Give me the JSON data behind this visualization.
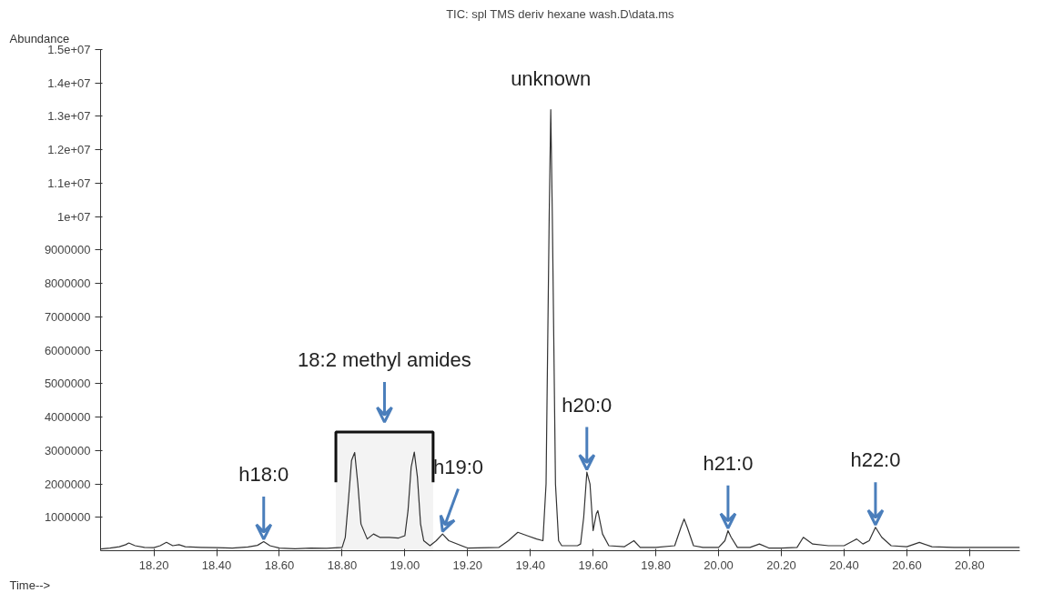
{
  "chart_data": {
    "type": "line",
    "title": "TIC: spl TMS deriv hexane wash.D\\data.ms",
    "xlabel": "Time-->",
    "ylabel": "Abundance",
    "x": [
      18.03,
      18.06,
      18.09,
      18.11,
      18.12,
      18.14,
      18.17,
      18.2,
      18.22,
      18.24,
      18.26,
      18.28,
      18.3,
      18.35,
      18.4,
      18.45,
      18.5,
      18.53,
      18.55,
      18.57,
      18.6,
      18.65,
      18.7,
      18.75,
      18.8,
      18.81,
      18.82,
      18.83,
      18.84,
      18.85,
      18.86,
      18.88,
      18.9,
      18.92,
      18.95,
      18.98,
      19.0,
      19.01,
      19.02,
      19.03,
      19.04,
      19.05,
      19.06,
      19.08,
      19.1,
      19.12,
      19.14,
      19.2,
      19.3,
      19.33,
      19.36,
      19.39,
      19.42,
      19.44,
      19.45,
      19.46,
      19.465,
      19.47,
      19.48,
      19.49,
      19.5,
      19.55,
      19.56,
      19.57,
      19.58,
      19.59,
      19.6,
      19.61,
      19.615,
      19.63,
      19.65,
      19.7,
      19.73,
      19.75,
      19.8,
      19.86,
      19.88,
      19.89,
      19.9,
      19.92,
      19.95,
      20.0,
      20.02,
      20.03,
      20.04,
      20.06,
      20.1,
      20.13,
      20.16,
      20.2,
      20.25,
      20.27,
      20.3,
      20.35,
      20.4,
      20.43,
      20.44,
      20.46,
      20.48,
      20.5,
      20.52,
      20.55,
      20.6,
      20.64,
      20.68,
      20.75,
      20.85,
      20.96
    ],
    "series": [
      {
        "color": "#333333",
        "values": [
          50000,
          80000,
          120000,
          180000,
          230000,
          150000,
          100000,
          90000,
          150000,
          250000,
          150000,
          180000,
          120000,
          100000,
          90000,
          80000,
          110000,
          160000,
          270000,
          150000,
          80000,
          60000,
          80000,
          70000,
          100000,
          400000,
          1500000,
          2700000,
          2940000,
          2000000,
          800000,
          350000,
          500000,
          400000,
          400000,
          380000,
          450000,
          1200000,
          2500000,
          2950000,
          2200000,
          800000,
          300000,
          150000,
          300000,
          500000,
          300000,
          80000,
          100000,
          300000,
          550000,
          450000,
          350000,
          300000,
          2000000,
          10000000,
          13200000,
          10000000,
          2000000,
          300000,
          150000,
          150000,
          200000,
          1000000,
          2350000,
          2000000,
          600000,
          1100000,
          1200000,
          500000,
          150000,
          120000,
          300000,
          100000,
          100000,
          150000,
          700000,
          950000,
          700000,
          150000,
          100000,
          100000,
          300000,
          600000,
          400000,
          100000,
          100000,
          200000,
          80000,
          80000,
          100000,
          400000,
          200000,
          150000,
          150000,
          300000,
          350000,
          200000,
          300000,
          700000,
          400000,
          150000,
          120000,
          250000,
          120000,
          100000,
          100000,
          100000
        ]
      }
    ],
    "xlim": [
      18.03,
      20.96
    ],
    "ylim": [
      0,
      15000000
    ],
    "xticks": [
      {
        "value": 18.2,
        "label": "18.20"
      },
      {
        "value": 18.4,
        "label": "18.40"
      },
      {
        "value": 18.6,
        "label": "18.60"
      },
      {
        "value": 18.8,
        "label": "18.80"
      },
      {
        "value": 19.0,
        "label": "19.00"
      },
      {
        "value": 19.2,
        "label": "19.20"
      },
      {
        "value": 19.4,
        "label": "19.40"
      },
      {
        "value": 19.6,
        "label": "19.60"
      },
      {
        "value": 19.8,
        "label": "19.80"
      },
      {
        "value": 20.0,
        "label": "20.00"
      },
      {
        "value": 20.2,
        "label": "20.20"
      },
      {
        "value": 20.4,
        "label": "20.40"
      },
      {
        "value": 20.6,
        "label": "20.60"
      },
      {
        "value": 20.8,
        "label": "20.80"
      }
    ],
    "yticks": [
      1000000,
      2000000,
      3000000,
      4000000,
      5000000,
      6000000,
      7000000,
      8000000,
      9000000,
      {
        "value": 10000000,
        "label": "1e+07"
      },
      {
        "value": 11000000,
        "label": "1.1e+07"
      },
      {
        "value": 12000000,
        "label": "1.2e+07"
      },
      {
        "value": 13000000,
        "label": "1.3e+07"
      },
      {
        "value": 14000000,
        "label": "1.4e+07"
      },
      {
        "value": 15000000,
        "label": "1.5e+07"
      }
    ],
    "annotations": [
      {
        "text": "unknown",
        "x": 19.465,
        "y": 13200000
      },
      {
        "text": "h18:0",
        "x": 18.55,
        "y": 270000
      },
      {
        "text": "h19:0",
        "x": 19.12,
        "y": 500000
      },
      {
        "text": "h20:0",
        "x": 19.58,
        "y": 2350000
      },
      {
        "text": "h21:0",
        "x": 20.03,
        "y": 600000
      },
      {
        "text": "h22:0",
        "x": 20.5,
        "y": 700000
      }
    ],
    "bands": [
      {
        "axis": "x",
        "from": 18.78,
        "to": 19.09,
        "label": "18:2 methyl amides",
        "color": "#111111"
      }
    ],
    "grid": false,
    "line_style": "solid",
    "marker": "none"
  }
}
